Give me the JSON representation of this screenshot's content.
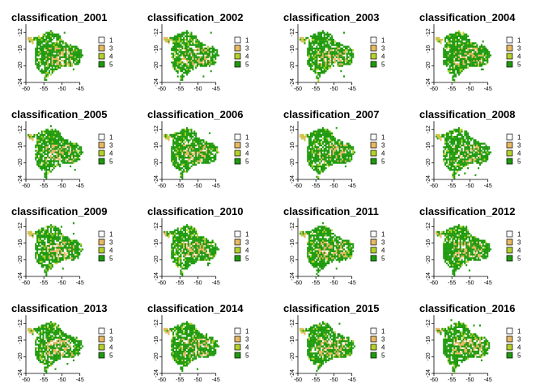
{
  "axis": {
    "x_ticks": [
      "-60",
      "-55",
      "-50",
      "-45"
    ],
    "x_values": [
      -60,
      -55,
      -50,
      -45
    ],
    "y_ticks": [
      "-12",
      "-16",
      "-20",
      "-24"
    ],
    "y_values": [
      -12,
      -16,
      -20,
      -24
    ],
    "x_range": [
      -60,
      -42
    ],
    "y_range": [
      -24,
      -10
    ]
  },
  "legend": [
    {
      "label": "1",
      "color": "#ffffff"
    },
    {
      "label": "3",
      "color": "#e8b863"
    },
    {
      "label": "4",
      "color": "#b4d12a"
    },
    {
      "label": "5",
      "color": "#1f9a0e"
    }
  ],
  "panels": [
    {
      "title": "classification_2001"
    },
    {
      "title": "classification_2002"
    },
    {
      "title": "classification_2003"
    },
    {
      "title": "classification_2004"
    },
    {
      "title": "classification_2005"
    },
    {
      "title": "classification_2006"
    },
    {
      "title": "classification_2007"
    },
    {
      "title": "classification_2008"
    },
    {
      "title": "classification_2009"
    },
    {
      "title": "classification_2010"
    },
    {
      "title": "classification_2011"
    },
    {
      "title": "classification_2012"
    },
    {
      "title": "classification_2013"
    },
    {
      "title": "classification_2014"
    },
    {
      "title": "classification_2015"
    },
    {
      "title": "classification_2016"
    }
  ]
}
